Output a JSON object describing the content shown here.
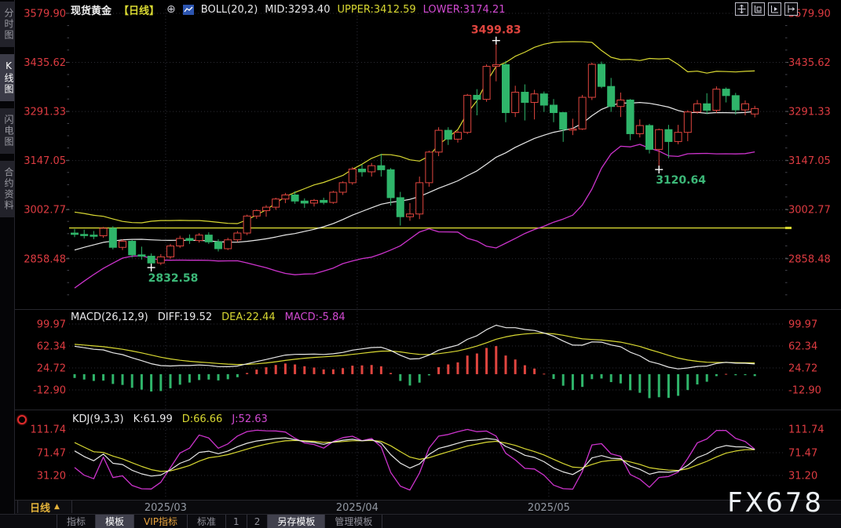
{
  "sidebar": {
    "tabs": [
      {
        "label": "分时图",
        "active": false
      },
      {
        "label": "K线图",
        "active": true
      },
      {
        "label": "闪电图",
        "active": false
      },
      {
        "label": "合约资料",
        "active": false
      }
    ]
  },
  "header": {
    "symbol": "现货黄金",
    "period_tag": "【日线】",
    "add_icon": "⊕",
    "boll_label": "BOLL(20,2)",
    "mid": "MID:3293.40",
    "upper": "UPPER:3412.59",
    "lower": "LOWER:3174.21"
  },
  "macd_header": {
    "label": "MACD(26,12,9)",
    "diff": "DIFF:19.52",
    "dea": "DEA:22.44",
    "macd": "MACD:-5.84"
  },
  "kdj_header": {
    "label": "KDJ(9,3,3)",
    "k": "K:61.99",
    "d": "D:66.66",
    "j": "J:52.63"
  },
  "bottom": {
    "period": "日线",
    "arrow": "▲",
    "watermark": "FX678",
    "toolbar": [
      {
        "label": "指标",
        "active": false,
        "vip": false
      },
      {
        "label": "模板",
        "active": true,
        "vip": false
      },
      {
        "label": "VIP指标",
        "active": false,
        "vip": true
      },
      {
        "label": "标准",
        "active": false,
        "vip": false
      },
      {
        "label": "1",
        "active": false,
        "vip": false
      },
      {
        "label": "2",
        "active": false,
        "vip": false
      },
      {
        "label": "另存模板",
        "active": true,
        "vip": false
      },
      {
        "label": "管理模板",
        "active": false,
        "vip": false
      }
    ]
  },
  "chart_data": {
    "type": "candlestick",
    "title": "现货黄金 日线",
    "price_axis_labels": [
      3579.9,
      3435.62,
      3291.33,
      3147.05,
      3002.77,
      2858.48
    ],
    "price_ylim": [
      2715,
      3596
    ],
    "macd_axis_labels": [
      99.97,
      62.34,
      24.72,
      -12.9
    ],
    "kdj_axis_labels": [
      111.74,
      71.47,
      31.2
    ],
    "x_labels": [
      {
        "label": "2025/03",
        "start_index": 10
      },
      {
        "label": "2025/04",
        "start_index": 30
      },
      {
        "label": "2025/05",
        "start_index": 50
      }
    ],
    "h_line": 2949,
    "annotations": [
      {
        "index": 44,
        "text": "3499.83",
        "color": "#e0453f",
        "position": "high"
      },
      {
        "index": 61,
        "text": "3120.64",
        "color": "#3cb878",
        "position": "low"
      },
      {
        "index": 8,
        "text": "2832.58",
        "color": "#3cb878",
        "position": "low"
      }
    ],
    "indicators": {
      "boll": {
        "period": 20,
        "mult": 2
      },
      "macd": {
        "fast": 12,
        "slow": 26,
        "signal": 9
      },
      "kdj": {
        "n": 9,
        "k": 3,
        "d": 3
      }
    },
    "warmup_closes": [
      2622,
      2634,
      2646,
      2658,
      2670,
      2682,
      2696,
      2710,
      2724,
      2738,
      2752,
      2768,
      2784,
      2800,
      2816,
      2832,
      2848,
      2862,
      2876,
      2890,
      2902,
      2912,
      2920,
      2928,
      2934,
      2938,
      2940,
      2938,
      2934,
      2930
    ],
    "candles": [
      [
        2934,
        2946,
        2922,
        2930
      ],
      [
        2930,
        2944,
        2918,
        2928
      ],
      [
        2928,
        2940,
        2916,
        2926
      ],
      [
        2926,
        2952,
        2920,
        2948
      ],
      [
        2948,
        2954,
        2886,
        2892
      ],
      [
        2892,
        2916,
        2884,
        2910
      ],
      [
        2910,
        2914,
        2862,
        2870
      ],
      [
        2870,
        2894,
        2856,
        2866
      ],
      [
        2866,
        2874,
        2832.58,
        2846
      ],
      [
        2846,
        2872,
        2840,
        2864
      ],
      [
        2864,
        2902,
        2858,
        2896
      ],
      [
        2896,
        2926,
        2890,
        2918
      ],
      [
        2918,
        2930,
        2902,
        2912
      ],
      [
        2912,
        2934,
        2906,
        2928
      ],
      [
        2928,
        2936,
        2902,
        2908
      ],
      [
        2908,
        2916,
        2880,
        2888
      ],
      [
        2888,
        2920,
        2884,
        2914
      ],
      [
        2914,
        2940,
        2908,
        2934
      ],
      [
        2934,
        2988,
        2928,
        2984
      ],
      [
        2984,
        3004,
        2976,
        3000
      ],
      [
        3000,
        3016,
        2982,
        3010
      ],
      [
        3010,
        3038,
        3002,
        3034
      ],
      [
        3034,
        3052,
        3022,
        3046
      ],
      [
        3046,
        3057,
        3020,
        3028
      ],
      [
        3028,
        3036,
        3008,
        3022
      ],
      [
        3022,
        3034,
        3012,
        3030
      ],
      [
        3030,
        3038,
        3018,
        3024
      ],
      [
        3024,
        3058,
        3020,
        3054
      ],
      [
        3054,
        3086,
        3046,
        3082
      ],
      [
        3082,
        3128,
        3076,
        3122
      ],
      [
        3122,
        3136,
        3100,
        3114
      ],
      [
        3114,
        3140,
        3100,
        3132
      ],
      [
        3132,
        3167,
        3100,
        3120
      ],
      [
        3120,
        3125,
        3015,
        3038
      ],
      [
        3038,
        3055,
        2956,
        2982
      ],
      [
        2982,
        3022,
        2970,
        2990
      ],
      [
        2990,
        3100,
        2975,
        3082
      ],
      [
        3082,
        3176,
        3070,
        3172
      ],
      [
        3172,
        3245,
        3160,
        3236
      ],
      [
        3236,
        3245,
        3193,
        3210
      ],
      [
        3210,
        3235,
        3200,
        3230
      ],
      [
        3230,
        3343,
        3225,
        3339
      ],
      [
        3339,
        3357,
        3280,
        3327
      ],
      [
        3327,
        3430,
        3320,
        3424
      ],
      [
        3424,
        3499.83,
        3380,
        3429
      ],
      [
        3429,
        3440,
        3260,
        3288
      ],
      [
        3288,
        3367,
        3275,
        3348
      ],
      [
        3348,
        3371,
        3265,
        3318
      ],
      [
        3318,
        3355,
        3268,
        3343
      ],
      [
        3343,
        3350,
        3290,
        3310
      ],
      [
        3310,
        3328,
        3260,
        3288
      ],
      [
        3288,
        3290,
        3202,
        3239
      ],
      [
        3239,
        3270,
        3222,
        3240
      ],
      [
        3240,
        3340,
        3237,
        3333
      ],
      [
        3333,
        3435,
        3325,
        3430
      ],
      [
        3430,
        3438,
        3360,
        3365
      ],
      [
        3365,
        3390,
        3290,
        3306
      ],
      [
        3306,
        3347,
        3275,
        3325
      ],
      [
        3325,
        3328,
        3207,
        3226
      ],
      [
        3226,
        3268,
        3215,
        3250
      ],
      [
        3250,
        3255,
        3168,
        3180
      ],
      [
        3180,
        3241,
        3120.64,
        3238
      ],
      [
        3238,
        3252,
        3154,
        3203
      ],
      [
        3203,
        3252,
        3195,
        3230
      ],
      [
        3230,
        3295,
        3204,
        3290
      ],
      [
        3290,
        3325,
        3285,
        3314
      ],
      [
        3314,
        3345,
        3283,
        3295
      ],
      [
        3295,
        3365,
        3287,
        3357
      ],
      [
        3357,
        3362,
        3318,
        3338
      ],
      [
        3338,
        3346,
        3282,
        3296
      ],
      [
        3296,
        3324,
        3280,
        3314
      ],
      [
        3284,
        3308,
        3274,
        3300
      ]
    ],
    "colors": {
      "up": "#e0453f",
      "down": "#2fb56a",
      "boll_mid": "#e8e8e8",
      "boll_up": "#d8d832",
      "boll_low": "#cc33cc",
      "diff": "#e8e8e8",
      "dea": "#d8d832",
      "bar_pos": "#e0453f",
      "bar_neg": "#2fb56a",
      "k": "#e8e8e8",
      "d": "#d8d832",
      "j": "#cc33cc",
      "axis_label": "#dd3b41",
      "grid": "#2c2c34",
      "hline": "#d8d832",
      "month_label": "#9298a2",
      "cross": "#ffffff"
    }
  }
}
